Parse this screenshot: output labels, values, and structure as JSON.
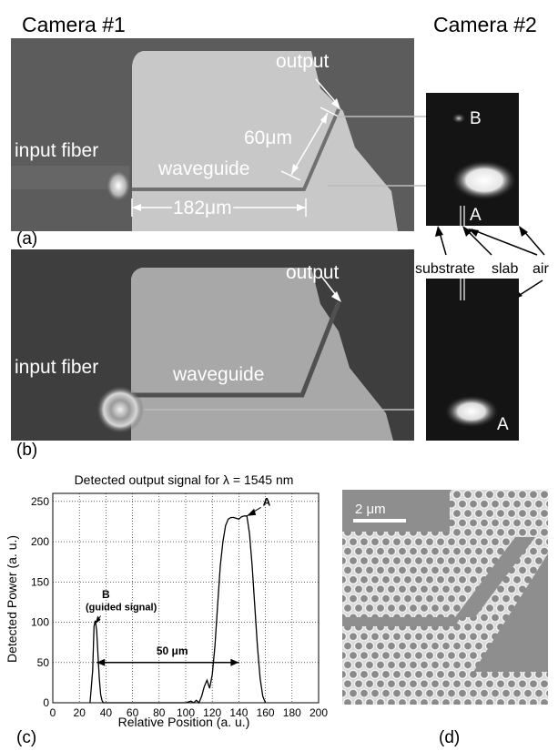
{
  "header": {
    "camera1": "Camera #1",
    "camera2": "Camera #2"
  },
  "panel_a": {
    "letter": "(a)",
    "input_fiber": "input fiber",
    "waveguide": "waveguide",
    "output": "output",
    "dim_vertical": "60μm",
    "dim_horizontal": "182μm",
    "spot_b": "B",
    "spot_a": "A"
  },
  "middle_labels": {
    "substrate": "substrate",
    "slab": "slab",
    "air": "air"
  },
  "panel_b": {
    "letter": "(b)",
    "input_fiber": "input fiber",
    "waveguide": "waveguide",
    "output": "output",
    "spot_a": "A"
  },
  "panel_c": {
    "letter": "(c)"
  },
  "panel_d": {
    "letter": "(d)",
    "scale_bar": "2 μm"
  },
  "chart_data": {
    "type": "line",
    "title": "Detected output signal for λ = 1545 nm",
    "xlabel": "Relative Position (a. u.)",
    "ylabel": "Detected Power (a. u.)",
    "xlim": [
      0,
      200
    ],
    "ylim": [
      0,
      260
    ],
    "xticks": [
      0,
      20,
      40,
      60,
      80,
      100,
      120,
      140,
      160,
      180,
      200
    ],
    "yticks": [
      0,
      50,
      100,
      150,
      200,
      250
    ],
    "grid": true,
    "series": [
      {
        "x": [
          28,
          30,
          31,
          32,
          33,
          34,
          35,
          36,
          37,
          38,
          40,
          100,
          104,
          106,
          108,
          110,
          112,
          114,
          116,
          118,
          120,
          122,
          124,
          126,
          128,
          130,
          132,
          134,
          136,
          138,
          140,
          142,
          144,
          146,
          148,
          150,
          152,
          154,
          156,
          158,
          160
        ],
        "y": [
          0,
          40,
          95,
          102,
          90,
          60,
          30,
          10,
          3,
          0,
          0,
          0,
          2,
          0,
          3,
          0,
          8,
          20,
          28,
          18,
          35,
          70,
          120,
          170,
          200,
          220,
          228,
          230,
          230,
          229,
          228,
          231,
          232,
          232,
          210,
          170,
          120,
          70,
          30,
          8,
          0
        ]
      }
    ],
    "annotations": [
      {
        "text": "A",
        "x": 158,
        "y": 245
      },
      {
        "text": "B",
        "x": 37,
        "y": 130
      },
      {
        "text": "(guided signal)",
        "x": 37,
        "y": 115
      },
      {
        "text": "50 μm",
        "x": 78,
        "y": 60
      }
    ]
  }
}
